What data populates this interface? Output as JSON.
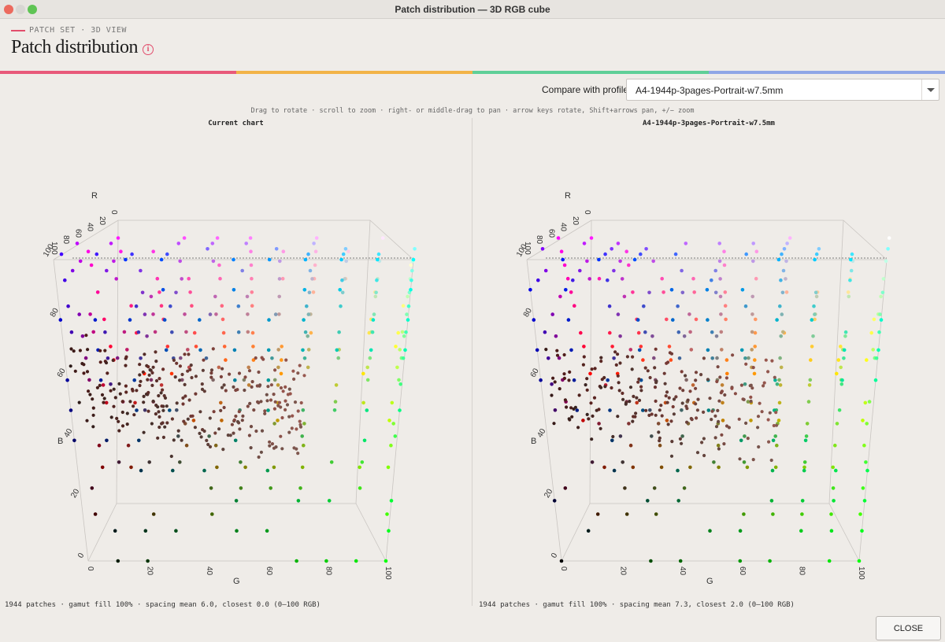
{
  "window": {
    "title": "Patch distribution — 3D RGB cube"
  },
  "breadcrumb": "PATCH SET · 3D VIEW",
  "page_title": "Patch distribution",
  "accent_colors": [
    "#e8597a",
    "#f2b347",
    "#5fcf98",
    "#8fa6e6"
  ],
  "compare": {
    "label": "Compare with profile:",
    "selected": "A4-1944p-3pages-Portrait-w7.5mm"
  },
  "hint": "Drag to rotate · scroll to zoom · right- or middle-drag to pan · arrow keys rotate, Shift+arrows pan, +/− zoom",
  "panels": [
    {
      "title": "Current chart",
      "axis_labels": {
        "r": "R",
        "g": "G",
        "b": "B"
      },
      "ticks": [
        "0",
        "20",
        "40",
        "60",
        "80",
        "100"
      ],
      "stats": "1944 patches · gamut fill 100% · spacing mean 6.0, closest 0.0 (0–100 RGB)"
    },
    {
      "title": "A4-1944p-3pages-Portrait-w7.5mm",
      "axis_labels": {
        "r": "R",
        "g": "G",
        "b": "B"
      },
      "ticks": [
        "0",
        "20",
        "40",
        "60",
        "80",
        "100"
      ],
      "stats": "1944 patches · gamut fill 100% · spacing mean 7.3, closest 2.0 (0–100 RGB)"
    }
  ],
  "close_label": "CLOSE"
}
